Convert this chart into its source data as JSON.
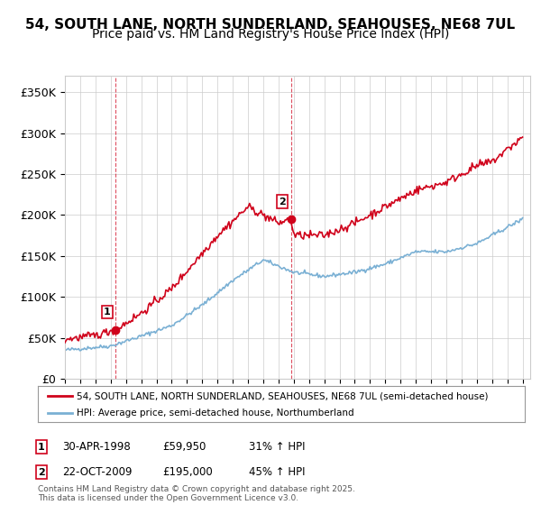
{
  "title": "54, SOUTH LANE, NORTH SUNDERLAND, SEAHOUSES, NE68 7UL",
  "subtitle": "Price paid vs. HM Land Registry's House Price Index (HPI)",
  "ylabel_ticks": [
    "£0",
    "£50K",
    "£100K",
    "£150K",
    "£200K",
    "£250K",
    "£300K",
    "£350K"
  ],
  "ytick_vals": [
    0,
    50000,
    100000,
    150000,
    200000,
    250000,
    300000,
    350000
  ],
  "ylim": [
    0,
    370000
  ],
  "xlim_start": 1995.0,
  "xlim_end": 2025.5,
  "purchase1_x": 1998.33,
  "purchase1_y": 59950,
  "purchase1_label": "1",
  "purchase2_x": 2009.81,
  "purchase2_y": 195000,
  "purchase2_label": "2",
  "purchase1_vline_x": 1998.33,
  "purchase2_vline_x": 2009.81,
  "legend_line1": "54, SOUTH LANE, NORTH SUNDERLAND, SEAHOUSES, NE68 7UL (semi-detached house)",
  "legend_line2": "HPI: Average price, semi-detached house, Northumberland",
  "ann1_date": "30-APR-1998",
  "ann1_price": "£59,950",
  "ann1_hpi": "31% ↑ HPI",
  "ann2_date": "22-OCT-2009",
  "ann2_price": "£195,000",
  "ann2_hpi": "45% ↑ HPI",
  "footer": "Contains HM Land Registry data © Crown copyright and database right 2025.\nThis data is licensed under the Open Government Licence v3.0.",
  "line_color_red": "#d0021b",
  "line_color_blue": "#7ab0d4",
  "background_color": "#ffffff",
  "grid_color": "#cccccc",
  "title_fontsize": 11,
  "subtitle_fontsize": 10
}
